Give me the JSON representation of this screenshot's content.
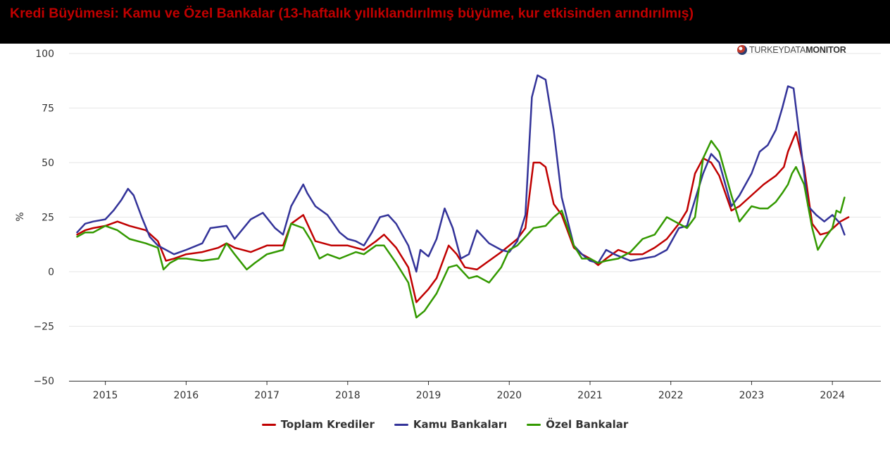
{
  "banner": {
    "title": "Kredi Büyümesi: Kamu ve Özel Bankalar (13-haftalık yıllıklandırılmış büyüme, kur etkisinden arındırılmış)"
  },
  "logo": {
    "text_light": "TURKEYDATA",
    "text_bold": "MONITOR"
  },
  "colors": {
    "banner_bg": "#000000",
    "title": "#c00000",
    "toplam": "#c00000",
    "kamu": "#333399",
    "ozel": "#339900",
    "grid": "#e6e6e6"
  },
  "chart_data": {
    "type": "line",
    "title": "Kredi Büyümesi: Kamu ve Özel Bankalar (13-haftalık yıllıklandırılmış büyüme, kur etkisinden arındırılmış)",
    "xlabel": "",
    "ylabel": "%",
    "xlim": [
      2014.55,
      2024.6
    ],
    "ylim": [
      -50,
      100
    ],
    "yticks": [
      -50,
      -25,
      0,
      25,
      50,
      75,
      100
    ],
    "xticks": [
      2015,
      2016,
      2017,
      2018,
      2019,
      2020,
      2021,
      2022,
      2023,
      2024
    ],
    "grid": true,
    "legend_position": "bottom",
    "series": [
      {
        "name": "Toplam Krediler",
        "color": "#c00000",
        "x": [
          2014.65,
          2014.75,
          2014.85,
          2015.0,
          2015.15,
          2015.3,
          2015.5,
          2015.65,
          2015.75,
          2015.85,
          2016.0,
          2016.2,
          2016.4,
          2016.5,
          2016.6,
          2016.8,
          2017.0,
          2017.2,
          2017.3,
          2017.45,
          2017.6,
          2017.8,
          2018.0,
          2018.2,
          2018.35,
          2018.45,
          2018.6,
          2018.75,
          2018.85,
          2019.0,
          2019.1,
          2019.25,
          2019.35,
          2019.45,
          2019.6,
          2019.75,
          2019.9,
          2020.0,
          2020.1,
          2020.2,
          2020.3,
          2020.38,
          2020.45,
          2020.55,
          2020.65,
          2020.8,
          2020.9,
          2021.0,
          2021.1,
          2021.2,
          2021.35,
          2021.5,
          2021.65,
          2021.8,
          2021.95,
          2022.1,
          2022.2,
          2022.3,
          2022.4,
          2022.5,
          2022.6,
          2022.75,
          2022.85,
          2023.0,
          2023.15,
          2023.3,
          2023.4,
          2023.45,
          2023.55,
          2023.65,
          2023.75,
          2023.85,
          2023.95,
          2024.1,
          2024.2
        ],
        "y": [
          17,
          19,
          20,
          21,
          23,
          21,
          19,
          14,
          5,
          6,
          8,
          9,
          11,
          13,
          11,
          9,
          12,
          12,
          22,
          26,
          14,
          12,
          12,
          10,
          14,
          17,
          11,
          2,
          -14,
          -8,
          -3,
          12,
          8,
          2,
          1,
          5,
          9,
          12,
          15,
          20,
          50,
          50,
          48,
          31,
          26,
          11,
          8,
          6,
          3,
          6,
          10,
          8,
          8,
          11,
          15,
          22,
          28,
          45,
          52,
          50,
          44,
          28,
          30,
          35,
          40,
          44,
          48,
          55,
          64,
          48,
          22,
          17,
          18,
          23,
          25
        ]
      },
      {
        "name": "Kamu Bankaları",
        "color": "#333399",
        "x": [
          2014.65,
          2014.75,
          2014.85,
          2015.0,
          2015.1,
          2015.2,
          2015.28,
          2015.35,
          2015.45,
          2015.55,
          2015.65,
          2015.75,
          2015.85,
          2016.0,
          2016.2,
          2016.3,
          2016.5,
          2016.6,
          2016.8,
          2016.95,
          2017.1,
          2017.2,
          2017.3,
          2017.45,
          2017.5,
          2017.6,
          2017.75,
          2017.9,
          2018.0,
          2018.1,
          2018.2,
          2018.3,
          2018.4,
          2018.5,
          2018.6,
          2018.75,
          2018.85,
          2018.9,
          2019.0,
          2019.1,
          2019.2,
          2019.3,
          2019.4,
          2019.5,
          2019.6,
          2019.75,
          2019.9,
          2020.0,
          2020.1,
          2020.2,
          2020.28,
          2020.35,
          2020.45,
          2020.55,
          2020.65,
          2020.8,
          2020.9,
          2021.0,
          2021.1,
          2021.2,
          2021.3,
          2021.5,
          2021.65,
          2021.8,
          2021.95,
          2022.1,
          2022.2,
          2022.3,
          2022.4,
          2022.5,
          2022.6,
          2022.75,
          2022.85,
          2023.0,
          2023.1,
          2023.2,
          2023.3,
          2023.38,
          2023.45,
          2023.52,
          2023.6,
          2023.7,
          2023.8,
          2023.9,
          2024.0,
          2024.1,
          2024.15
        ],
        "y": [
          18,
          22,
          23,
          24,
          28,
          33,
          38,
          35,
          25,
          16,
          12,
          10,
          8,
          10,
          13,
          20,
          21,
          15,
          24,
          27,
          20,
          17,
          30,
          40,
          36,
          30,
          26,
          18,
          15,
          14,
          12,
          18,
          25,
          26,
          22,
          12,
          0,
          10,
          7,
          15,
          29,
          20,
          6,
          8,
          19,
          13,
          10,
          9,
          14,
          26,
          80,
          90,
          88,
          65,
          34,
          12,
          8,
          5,
          4,
          10,
          8,
          5,
          6,
          7,
          10,
          20,
          21,
          33,
          45,
          54,
          50,
          30,
          35,
          45,
          55,
          58,
          65,
          75,
          85,
          84,
          60,
          30,
          26,
          23,
          26,
          22,
          17
        ]
      },
      {
        "name": "Özel Bankalar",
        "color": "#339900",
        "x": [
          2014.65,
          2014.75,
          2014.85,
          2015.0,
          2015.15,
          2015.3,
          2015.5,
          2015.65,
          2015.72,
          2015.8,
          2015.9,
          2016.0,
          2016.2,
          2016.4,
          2016.5,
          2016.6,
          2016.75,
          2016.85,
          2017.0,
          2017.2,
          2017.3,
          2017.45,
          2017.55,
          2017.65,
          2017.75,
          2017.9,
          2018.1,
          2018.2,
          2018.35,
          2018.45,
          2018.6,
          2018.75,
          2018.85,
          2018.95,
          2019.1,
          2019.25,
          2019.35,
          2019.5,
          2019.6,
          2019.75,
          2019.9,
          2020.0,
          2020.1,
          2020.2,
          2020.3,
          2020.45,
          2020.55,
          2020.65,
          2020.8,
          2020.9,
          2021.0,
          2021.1,
          2021.2,
          2021.35,
          2021.5,
          2021.65,
          2021.8,
          2021.95,
          2022.1,
          2022.2,
          2022.3,
          2022.4,
          2022.5,
          2022.6,
          2022.75,
          2022.85,
          2023.0,
          2023.1,
          2023.2,
          2023.3,
          2023.38,
          2023.45,
          2023.5,
          2023.55,
          2023.65,
          2023.75,
          2023.82,
          2023.9,
          2024.0,
          2024.05,
          2024.1,
          2024.15
        ],
        "y": [
          16,
          18,
          18,
          21,
          19,
          15,
          13,
          11,
          1,
          4,
          6,
          6,
          5,
          6,
          13,
          8,
          1,
          4,
          8,
          10,
          22,
          20,
          14,
          6,
          8,
          6,
          9,
          8,
          12,
          12,
          4,
          -5,
          -21,
          -18,
          -10,
          2,
          3,
          -3,
          -2,
          -5,
          2,
          10,
          12,
          16,
          20,
          21,
          25,
          28,
          12,
          6,
          6,
          4,
          5,
          6,
          9,
          15,
          17,
          25,
          22,
          20,
          25,
          52,
          60,
          55,
          35,
          23,
          30,
          29,
          29,
          32,
          36,
          40,
          45,
          48,
          40,
          20,
          10,
          15,
          20,
          28,
          27,
          34
        ]
      }
    ]
  }
}
